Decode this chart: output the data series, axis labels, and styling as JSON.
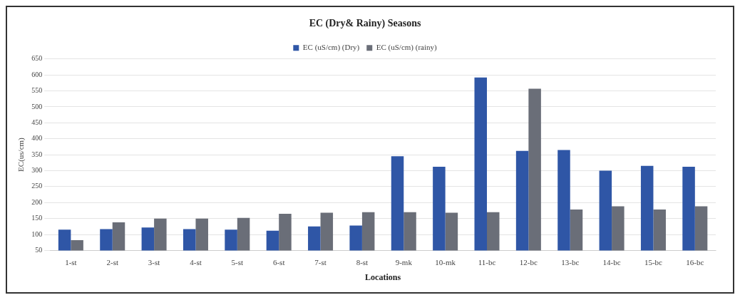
{
  "chart_data": {
    "type": "bar",
    "title": "EC (Dry& Rainy) Seasons",
    "xlabel": "Locations",
    "ylabel": "EC(us/cm)",
    "categories": [
      "1-st",
      "2-st",
      "3-st",
      "4-st",
      "5-st",
      "6-st",
      "7-st",
      "8-st",
      "9-mk",
      "10-mk",
      "11-bc",
      "12-bc",
      "13-bc",
      "14-bc",
      "15-bc",
      "16-bc"
    ],
    "series": [
      {
        "name": "EC (uS/cm) (Dry)",
        "color": "#2f56a6",
        "values": [
          115,
          117,
          122,
          117,
          115,
          112,
          125,
          128,
          345,
          312,
          592,
          362,
          365,
          300,
          315,
          312
        ]
      },
      {
        "name": "EC (uS/cm) (rainy)",
        "color": "#6a6e78",
        "values": [
          82,
          138,
          150,
          150,
          152,
          165,
          168,
          170,
          170,
          168,
          170,
          557,
          178,
          188,
          178,
          188
        ]
      }
    ],
    "ylim": [
      50,
      650
    ],
    "yticks": [
      50,
      100,
      150,
      200,
      250,
      300,
      350,
      400,
      450,
      500,
      550,
      600,
      650
    ],
    "grid": "y",
    "legend": "top"
  }
}
